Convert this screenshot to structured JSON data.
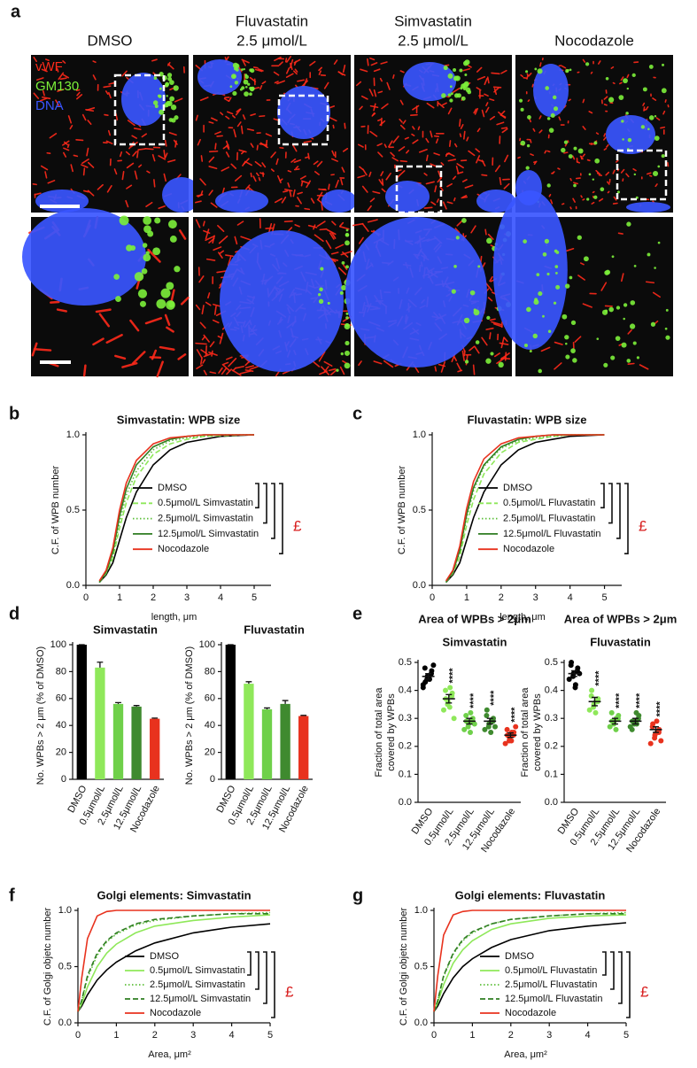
{
  "panel_a": {
    "panel": "a",
    "columns": [
      [
        "DMSO"
      ],
      [
        "Fluvastatin",
        "2.5 μmol/L"
      ],
      [
        "Simvastatin",
        "2.5 μmol/L"
      ],
      [
        "Nocodazole"
      ]
    ],
    "channels": [
      {
        "name": "vWF",
        "color": "#ff2a1a"
      },
      {
        "name": "GM130",
        "color": "#7cf03a"
      },
      {
        "name": "DNA",
        "color": "#3a56ff"
      }
    ]
  },
  "chart_data": [
    {
      "type": "line",
      "panel": "b",
      "title": "Simvastatin: WPB size",
      "xlabel": "length, μm",
      "ylabel": "C.F. of WPB number",
      "xlim": [
        0,
        5.5
      ],
      "ylim": [
        0,
        1
      ],
      "xticks": [
        0,
        1,
        2,
        3,
        4,
        5
      ],
      "yticks": [
        {
          "value": 0,
          "label": "0.0"
        },
        {
          "value": 0.5,
          "label": "0.5"
        },
        {
          "value": 1,
          "label": "1.0"
        }
      ],
      "x": [
        0.4,
        0.6,
        0.8,
        1,
        1.2,
        1.5,
        2,
        2.5,
        3,
        3.5,
        4,
        5
      ],
      "series": [
        {
          "name": "DMSO",
          "color": "#000000",
          "dash": "solid",
          "values": [
            0.02,
            0.07,
            0.15,
            0.3,
            0.45,
            0.62,
            0.8,
            0.9,
            0.95,
            0.97,
            0.99,
            1
          ]
        },
        {
          "name": "0.5μmol/L Simvastatin",
          "color": "#8fe85a",
          "dash": "dashed",
          "values": [
            0.02,
            0.08,
            0.18,
            0.38,
            0.55,
            0.72,
            0.87,
            0.94,
            0.97,
            0.99,
            0.995,
            1
          ]
        },
        {
          "name": "2.5μmol/L Simvastatin",
          "color": "#5cbf3a",
          "dash": "dotted",
          "values": [
            0.02,
            0.08,
            0.2,
            0.42,
            0.6,
            0.76,
            0.9,
            0.96,
            0.98,
            0.99,
            1,
            1
          ]
        },
        {
          "name": "12.5μmol/L Simvastatin",
          "color": "#2f7d22",
          "dash": "solid",
          "values": [
            0.02,
            0.09,
            0.22,
            0.46,
            0.64,
            0.8,
            0.92,
            0.97,
            0.99,
            1,
            1,
            1
          ]
        },
        {
          "name": "Nocodazole",
          "color": "#e8321e",
          "dash": "solid",
          "values": [
            0.03,
            0.1,
            0.25,
            0.5,
            0.68,
            0.83,
            0.94,
            0.98,
            0.99,
            1,
            1,
            1
          ]
        }
      ],
      "annotation": "£"
    },
    {
      "type": "line",
      "panel": "c",
      "title": "Fluvastatin: WPB size",
      "xlabel": "length, μm",
      "ylabel": "C.F. of WPB number",
      "xlim": [
        0,
        5.5
      ],
      "ylim": [
        0,
        1
      ],
      "xticks": [
        0,
        1,
        2,
        3,
        4,
        5
      ],
      "yticks": [
        {
          "value": 0,
          "label": "0.0"
        },
        {
          "value": 0.5,
          "label": "0.5"
        },
        {
          "value": 1,
          "label": "1.0"
        }
      ],
      "x": [
        0.4,
        0.6,
        0.8,
        1,
        1.2,
        1.5,
        2,
        2.5,
        3,
        3.5,
        4,
        5
      ],
      "series": [
        {
          "name": "DMSO",
          "color": "#000000",
          "dash": "solid",
          "values": [
            0.02,
            0.07,
            0.15,
            0.3,
            0.45,
            0.62,
            0.8,
            0.9,
            0.95,
            0.97,
            0.99,
            1
          ]
        },
        {
          "name": "0.5μmol/L Fluvastatin",
          "color": "#8fe85a",
          "dash": "dashed",
          "values": [
            0.02,
            0.08,
            0.19,
            0.4,
            0.57,
            0.74,
            0.88,
            0.95,
            0.97,
            0.99,
            1,
            1
          ]
        },
        {
          "name": "2.5μmol/L Fluvastatin",
          "color": "#5cbf3a",
          "dash": "dotted",
          "values": [
            0.02,
            0.09,
            0.22,
            0.45,
            0.63,
            0.79,
            0.91,
            0.96,
            0.98,
            0.99,
            1,
            1
          ]
        },
        {
          "name": "12.5μmol/L Fluvastatin",
          "color": "#2f7d22",
          "dash": "solid",
          "values": [
            0.02,
            0.09,
            0.23,
            0.47,
            0.65,
            0.8,
            0.92,
            0.97,
            0.99,
            1,
            1,
            1
          ]
        },
        {
          "name": "Nocodazole",
          "color": "#e8321e",
          "dash": "solid",
          "values": [
            0.03,
            0.1,
            0.26,
            0.51,
            0.69,
            0.84,
            0.94,
            0.98,
            0.99,
            1,
            1,
            1
          ]
        }
      ],
      "annotation": "£"
    },
    {
      "type": "bar",
      "panel": "d",
      "title": "Simvastatin",
      "ylabel": "No. WPBs > 2 μm (% of DMSO)",
      "categories": [
        "DMSO",
        "0.5μmol/L",
        "2.5μmol/L",
        "12.5μmol/L",
        "Nocodazole"
      ],
      "values": [
        100,
        83,
        56,
        54,
        45
      ],
      "errors": [
        0,
        4,
        1,
        0.8,
        0.5
      ],
      "colors": [
        "#000000",
        "#8fe85a",
        "#6fd04a",
        "#3f8a2f",
        "#e8321e"
      ],
      "ylim": [
        0,
        100
      ],
      "yticks": [
        0,
        20,
        40,
        60,
        80,
        100
      ]
    },
    {
      "type": "bar",
      "title": "Fluvastatin",
      "ylabel": "No. WPBs > 2 μm (% of DMSO)",
      "categories": [
        "DMSO",
        "0.5μmol/L",
        "2.5μmol/L",
        "12.5μmol/L",
        "Nocodazole"
      ],
      "values": [
        100,
        71,
        52,
        56,
        47
      ],
      "errors": [
        0,
        1.5,
        1,
        2.5,
        0.5
      ],
      "colors": [
        "#000000",
        "#8fe85a",
        "#6fd04a",
        "#3f8a2f",
        "#e8321e"
      ],
      "ylim": [
        0,
        100
      ],
      "yticks": [
        0,
        20,
        40,
        60,
        80,
        100
      ]
    },
    {
      "type": "dot",
      "panel": "e",
      "title": "Area of WPBs > 2μm",
      "subtitle": "Simvastatin",
      "ylabel": [
        "Fraction of total area",
        "covered by WPBs"
      ],
      "categories": [
        "DMSO",
        "0.5μmol/L",
        "2.5μmol/L",
        "12.5μmol/L",
        "Nocodazole"
      ],
      "points": [
        [
          0.42,
          0.44,
          0.45,
          0.46,
          0.47,
          0.48,
          0.43,
          0.45,
          0.44,
          0.49,
          0.41
        ],
        [
          0.33,
          0.35,
          0.36,
          0.38,
          0.39,
          0.4,
          0.37,
          0.34,
          0.41,
          0.3
        ],
        [
          0.26,
          0.27,
          0.28,
          0.29,
          0.3,
          0.31,
          0.29,
          0.25,
          0.32,
          0.28
        ],
        [
          0.26,
          0.27,
          0.28,
          0.29,
          0.3,
          0.31,
          0.33,
          0.25,
          0.29,
          0.27
        ],
        [
          0.21,
          0.22,
          0.23,
          0.24,
          0.25,
          0.26,
          0.24,
          0.22,
          0.25,
          0.27
        ]
      ],
      "values": [
        0.45,
        0.37,
        0.29,
        0.29,
        0.24
      ],
      "errors": [
        0.01,
        0.015,
        0.01,
        0.01,
        0.008
      ],
      "annotations": [
        null,
        "****",
        "****",
        "****",
        "****"
      ],
      "colors": [
        "#000000",
        "#8fe85a",
        "#6fd04a",
        "#3f8a2f",
        "#e8321e"
      ],
      "ylim": [
        0,
        0.5
      ],
      "yticks": [
        {
          "value": 0,
          "label": "0.0"
        },
        {
          "value": 0.1,
          "label": "0.1"
        },
        {
          "value": 0.2,
          "label": "0.2"
        },
        {
          "value": 0.3,
          "label": "0.3"
        },
        {
          "value": 0.4,
          "label": "0.4"
        },
        {
          "value": 0.5,
          "label": "0.5"
        }
      ]
    },
    {
      "type": "dot",
      "title": "Area of WPBs > 2μm",
      "subtitle": "Fluvastatin",
      "ylabel": [
        "Fraction of total area",
        "covered by WPBs"
      ],
      "categories": [
        "DMSO",
        "0.5μmol/L",
        "2.5μmol/L",
        "12.5μmol/L",
        "Nocodazole"
      ],
      "points": [
        [
          0.44,
          0.45,
          0.46,
          0.47,
          0.48,
          0.49,
          0.5,
          0.41,
          0.42,
          0.46
        ],
        [
          0.33,
          0.34,
          0.35,
          0.36,
          0.37,
          0.38,
          0.4,
          0.32,
          0.36
        ],
        [
          0.27,
          0.28,
          0.29,
          0.3,
          0.31,
          0.32,
          0.29,
          0.26,
          0.3
        ],
        [
          0.27,
          0.28,
          0.29,
          0.3,
          0.31,
          0.26,
          0.29,
          0.32,
          0.28
        ],
        [
          0.21,
          0.23,
          0.24,
          0.25,
          0.26,
          0.27,
          0.28,
          0.29,
          0.25,
          0.22
        ]
      ],
      "values": [
        0.46,
        0.36,
        0.29,
        0.29,
        0.26
      ],
      "errors": [
        0.01,
        0.015,
        0.01,
        0.01,
        0.01
      ],
      "annotations": [
        null,
        "****",
        "****",
        "****",
        "****"
      ],
      "colors": [
        "#000000",
        "#8fe85a",
        "#6fd04a",
        "#3f8a2f",
        "#e8321e"
      ],
      "ylim": [
        0,
        0.5
      ],
      "yticks": [
        {
          "value": 0,
          "label": "0.0"
        },
        {
          "value": 0.1,
          "label": "0.1"
        },
        {
          "value": 0.2,
          "label": "0.2"
        },
        {
          "value": 0.3,
          "label": "0.3"
        },
        {
          "value": 0.4,
          "label": "0.4"
        },
        {
          "value": 0.5,
          "label": "0.5"
        }
      ]
    },
    {
      "type": "line",
      "panel": "f",
      "title": "Golgi elements:  Simvastatin",
      "xlabel": "Area, μm²",
      "ylabel": "C.F. of Golgi objetc number",
      "xlim": [
        0,
        5
      ],
      "ylim": [
        0,
        1
      ],
      "xticks": [
        0,
        1,
        2,
        3,
        4,
        5
      ],
      "yticks": [
        {
          "value": 0,
          "label": "0.0"
        },
        {
          "value": 0.5,
          "label": "0.5"
        },
        {
          "value": 1,
          "label": "1.0"
        }
      ],
      "x": [
        0,
        0.1,
        0.25,
        0.5,
        0.75,
        1,
        1.5,
        2,
        3,
        4,
        5
      ],
      "series": [
        {
          "name": "DMSO",
          "color": "#000000",
          "dash": "solid",
          "values": [
            0.1,
            0.15,
            0.25,
            0.38,
            0.47,
            0.54,
            0.64,
            0.71,
            0.8,
            0.85,
            0.88
          ]
        },
        {
          "name": "0.5μmol/L Simvastatin",
          "color": "#8fe85a",
          "dash": "solid",
          "values": [
            0.1,
            0.17,
            0.32,
            0.5,
            0.62,
            0.7,
            0.8,
            0.86,
            0.91,
            0.94,
            0.96
          ]
        },
        {
          "name": "2.5μmol/L Simvastatin",
          "color": "#5cbf3a",
          "dash": "dotted",
          "values": [
            0.1,
            0.2,
            0.4,
            0.6,
            0.72,
            0.79,
            0.87,
            0.91,
            0.95,
            0.97,
            0.98
          ]
        },
        {
          "name": "12.5μmol/L Simvastatin",
          "color": "#2f7d22",
          "dash": "dashed",
          "values": [
            0.1,
            0.2,
            0.42,
            0.62,
            0.73,
            0.8,
            0.88,
            0.92,
            0.95,
            0.97,
            0.97
          ]
        },
        {
          "name": "Nocodazole",
          "color": "#e8321e",
          "dash": "solid",
          "values": [
            0.1,
            0.4,
            0.75,
            0.95,
            0.99,
            1,
            1,
            1,
            1,
            1,
            1
          ]
        }
      ],
      "annotation": "£"
    },
    {
      "type": "line",
      "panel": "g",
      "title": "Golgi elements: Fluvastatin",
      "xlabel": "Area, μm²",
      "ylabel": "C.F. of Golgi objetc number",
      "xlim": [
        0,
        5
      ],
      "ylim": [
        0,
        1
      ],
      "xticks": [
        0,
        1,
        2,
        3,
        4,
        5
      ],
      "yticks": [
        {
          "value": 0,
          "label": "0.0"
        },
        {
          "value": 0.5,
          "label": "0.5"
        },
        {
          "value": 1,
          "label": "1.0"
        }
      ],
      "x": [
        0,
        0.1,
        0.25,
        0.5,
        0.75,
        1,
        1.5,
        2,
        3,
        4,
        5
      ],
      "series": [
        {
          "name": "DMSO",
          "color": "#000000",
          "dash": "solid",
          "values": [
            0.1,
            0.15,
            0.26,
            0.4,
            0.5,
            0.57,
            0.67,
            0.74,
            0.82,
            0.86,
            0.89
          ]
        },
        {
          "name": "0.5μmol/L Fluvastatin",
          "color": "#8fe85a",
          "dash": "solid",
          "values": [
            0.1,
            0.18,
            0.34,
            0.53,
            0.65,
            0.73,
            0.83,
            0.88,
            0.93,
            0.95,
            0.96
          ]
        },
        {
          "name": "2.5μmol/L Fluvastatin",
          "color": "#5cbf3a",
          "dash": "dotted",
          "values": [
            0.1,
            0.2,
            0.41,
            0.61,
            0.73,
            0.8,
            0.88,
            0.92,
            0.95,
            0.97,
            0.98
          ]
        },
        {
          "name": "12.5μmol/L Fluvastatin",
          "color": "#2f7d22",
          "dash": "dashed",
          "values": [
            0.1,
            0.2,
            0.42,
            0.62,
            0.74,
            0.81,
            0.88,
            0.92,
            0.95,
            0.97,
            0.97
          ]
        },
        {
          "name": "Nocodazole",
          "color": "#e8321e",
          "dash": "solid",
          "values": [
            0.1,
            0.42,
            0.78,
            0.96,
            0.99,
            1,
            1,
            1,
            1,
            1,
            1
          ]
        }
      ],
      "annotation": "£"
    }
  ]
}
